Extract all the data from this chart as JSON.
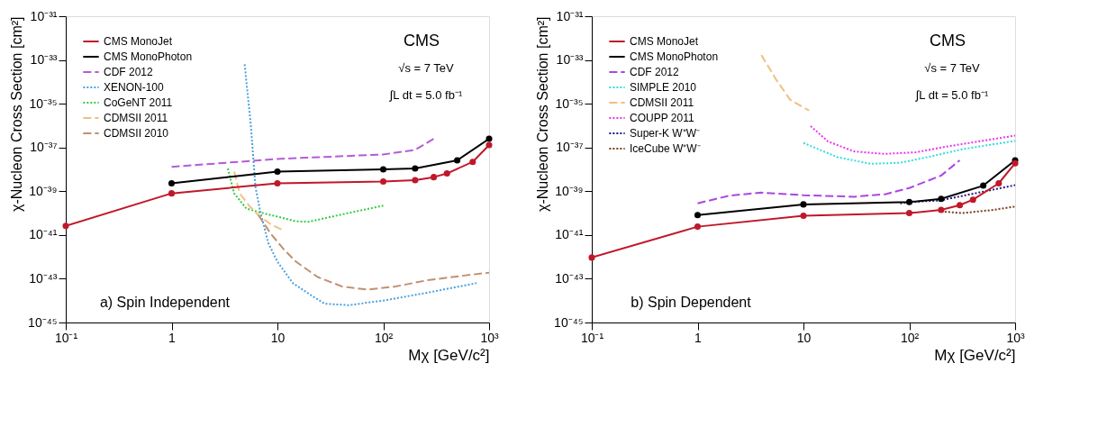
{
  "chart_data": [
    {
      "type": "line",
      "log": "xy",
      "legend": "top left",
      "grid": false,
      "xlabel": "Mχ [GeV/c²]",
      "ylabel": "χ-Nucleon Cross Section [cm²]",
      "xlim": [
        0.1,
        1000
      ],
      "ylim": [
        1e-45,
        1e-31
      ],
      "xticks": [
        {
          "value": 0.1,
          "label": "10⁻¹"
        },
        1,
        10,
        {
          "value": 100,
          "label": "10²"
        },
        {
          "value": 1000,
          "label": "10³"
        }
      ],
      "yticks": [
        {
          "value": 1e-45,
          "label": "10⁻⁴⁵"
        },
        {
          "value": 1e-43,
          "label": "10⁻⁴³"
        },
        {
          "value": 1e-41,
          "label": "10⁻⁴¹"
        },
        {
          "value": 1e-39,
          "label": "10⁻³⁹"
        },
        {
          "value": 1e-37,
          "label": "10⁻³⁷"
        },
        {
          "value": 1e-35,
          "label": "10⁻³⁵"
        },
        {
          "value": 1e-33,
          "label": "10⁻³³"
        },
        {
          "value": 1e-31,
          "label": "10⁻³¹"
        }
      ],
      "annotations": [
        "CMS",
        "√s = 7 TeV",
        "∫L dt = 5.0 fb⁻¹",
        "a) Spin Independent"
      ],
      "series": [
        {
          "name": "CMS MonoJet",
          "color": "#c0182a",
          "marker": "circle",
          "line_style": "solid",
          "x": [
            0.1,
            1,
            10,
            100,
            200,
            300,
            400,
            700,
            1000
          ],
          "values": [
            2.6e-41,
            8e-40,
            2.3e-39,
            2.8e-39,
            3.2e-39,
            4.4e-39,
            6.5e-39,
            2.2e-38,
            1.3e-37
          ]
        },
        {
          "name": "CMS MonoPhoton",
          "color": "#000000",
          "marker": "circle",
          "line_style": "solid",
          "x": [
            1,
            10,
            100,
            200,
            500,
            1000
          ],
          "values": [
            2.3e-39,
            7.9e-39,
            1e-38,
            1.1e-38,
            2.6e-38,
            2.5e-37
          ]
        },
        {
          "name": "CDF 2012",
          "color": "#b45cd8",
          "line_style": "dashed",
          "x": [
            1,
            10,
            100,
            200,
            300
          ],
          "values": [
            1.3e-38,
            3e-38,
            4.8e-38,
            7.8e-38,
            2.5e-37
          ]
        },
        {
          "name": "XENON-100",
          "color": "#4aa0e0",
          "line_style": "dotted",
          "x": [
            4.9,
            5.6,
            6.2,
            6.9,
            8.2,
            10,
            14,
            21,
            28,
            47,
            100,
            260,
            760
          ],
          "values": [
            6.3e-34,
            1.1e-36,
            1.6e-39,
            1.1e-40,
            4.3e-42,
            6e-43,
            6.3e-44,
            1.7e-44,
            7.2e-45,
            6.2e-45,
            1e-44,
            2.3e-44,
            6.3e-44
          ]
        },
        {
          "name": "CoGeNT 2011",
          "color": "#33cc44",
          "line_style": "dotted",
          "x": [
            3.4,
            3.9,
            5.1,
            7.6,
            10,
            15,
            19.7,
            30,
            51,
            100
          ],
          "values": [
            1.1e-38,
            8e-40,
            1.6e-40,
            9.5e-41,
            6.9e-41,
            4.2e-41,
            4e-41,
            6.3e-41,
            1.1e-40,
            2.2e-40
          ]
        },
        {
          "name": "CDMSII 2011",
          "color": "#f0c080",
          "line_style": "dashed",
          "x": [
            3.9,
            4.4,
            5.4,
            6.6,
            8.7,
            11.5
          ],
          "values": [
            7.9e-39,
            8e-40,
            2.2e-40,
            8.1e-41,
            3e-41,
            1.6e-41
          ]
        },
        {
          "name": "CDMSII 2010",
          "color": "#c09070",
          "line_style": "dashed",
          "x": [
            6.6,
            8.7,
            11.5,
            15,
            24,
            41,
            71,
            130,
            260,
            580,
            1000
          ],
          "values": [
            8.1e-41,
            1.1e-41,
            2.2e-42,
            6e-43,
            1.2e-43,
            4.4e-44,
            3.2e-44,
            4.4e-44,
            8.5e-44,
            1.4e-43,
            1.9e-43
          ]
        }
      ]
    },
    {
      "type": "line",
      "log": "xy",
      "legend": "top left",
      "grid": false,
      "xlabel": "Mχ [GeV/c²]",
      "ylabel": "χ-Nucleon Cross Section [cm²]",
      "xlim": [
        0.1,
        1000
      ],
      "ylim": [
        1e-45,
        1e-31
      ],
      "xticks": [
        {
          "value": 0.1,
          "label": "10⁻¹"
        },
        1,
        10,
        {
          "value": 100,
          "label": "10²"
        },
        {
          "value": 1000,
          "label": "10³"
        }
      ],
      "yticks": [
        {
          "value": 1e-45,
          "label": "10⁻⁴⁵"
        },
        {
          "value": 1e-43,
          "label": "10⁻⁴³"
        },
        {
          "value": 1e-41,
          "label": "10⁻⁴¹"
        },
        {
          "value": 1e-39,
          "label": "10⁻³⁹"
        },
        {
          "value": 1e-37,
          "label": "10⁻³⁷"
        },
        {
          "value": 1e-35,
          "label": "10⁻³⁵"
        },
        {
          "value": 1e-33,
          "label": "10⁻³³"
        },
        {
          "value": 1e-31,
          "label": "10⁻³¹"
        }
      ],
      "annotations": [
        "CMS",
        "√s = 7 TeV",
        "∫L dt = 5.0 fb⁻¹",
        "b) Spin Dependent"
      ],
      "series": [
        {
          "name": "CMS MonoJet",
          "color": "#c0182a",
          "marker": "circle",
          "line_style": "solid",
          "x": [
            0.1,
            1,
            10,
            100,
            200,
            300,
            400,
            700,
            1000
          ],
          "values": [
            9.3e-43,
            2.4e-41,
            7.6e-41,
            1e-40,
            1.4e-40,
            2.3e-40,
            4.1e-40,
            2.3e-39,
            1.9e-38
          ]
        },
        {
          "name": "CMS MonoPhoton",
          "color": "#000000",
          "marker": "circle",
          "line_style": "solid",
          "x": [
            1,
            10,
            100,
            200,
            500,
            1000
          ],
          "values": [
            8.1e-41,
            2.5e-40,
            3.2e-40,
            4.5e-40,
            1.8e-39,
            2.6e-38
          ]
        },
        {
          "name": "CDF 2012",
          "color": "#a848e0",
          "line_style": "dashed",
          "x": [
            1,
            2,
            4,
            10,
            30,
            60,
            100,
            200,
            300
          ],
          "values": [
            2.8e-40,
            6.3e-40,
            8.7e-40,
            6.6e-40,
            5.6e-40,
            7.4e-40,
            1.4e-39,
            5.2e-39,
            2.6e-38
          ]
        },
        {
          "name": "SIMPLE 2010",
          "color": "#33dddd",
          "line_style": "dotted",
          "x": [
            10,
            21,
            43,
            82,
            160,
            315,
            1000
          ],
          "values": [
            1.6e-37,
            3.6e-38,
            1.8e-38,
            2e-38,
            3.9e-38,
            8.3e-38,
            2e-37
          ]
        },
        {
          "name": "CDMSII 2011",
          "color": "#f0c080",
          "line_style": "dashed",
          "x": [
            4,
            5.5,
            7.5,
            11.3
          ],
          "values": [
            1.7e-33,
            1.3e-34,
            1.5e-35,
            4.9e-36
          ]
        },
        {
          "name": "COUPP 2011",
          "color": "#ee33ee",
          "line_style": "dotted",
          "x": [
            11.7,
            17,
            30,
            58,
            115,
            225,
            1000
          ],
          "values": [
            9.5e-37,
            1.9e-37,
            6.6e-38,
            5.1e-38,
            6e-38,
            1.1e-37,
            3.5e-37
          ]
        },
        {
          "name": "Super-K W⁺W⁻",
          "color": "#1a1a80",
          "line_style": "dotted",
          "x": [
            82,
            100,
            196,
            385,
            1000
          ],
          "values": [
            2.8e-40,
            3.2e-40,
            3.8e-40,
            7.4e-40,
            1.9e-39
          ]
        },
        {
          "name": "IceCube W⁺W⁻",
          "color": "#7a3a1a",
          "line_style": "dotted",
          "x": [
            200,
            315,
            620,
            1000
          ],
          "values": [
            1.2e-40,
            1e-40,
            1.4e-40,
            2e-40
          ]
        }
      ]
    }
  ]
}
